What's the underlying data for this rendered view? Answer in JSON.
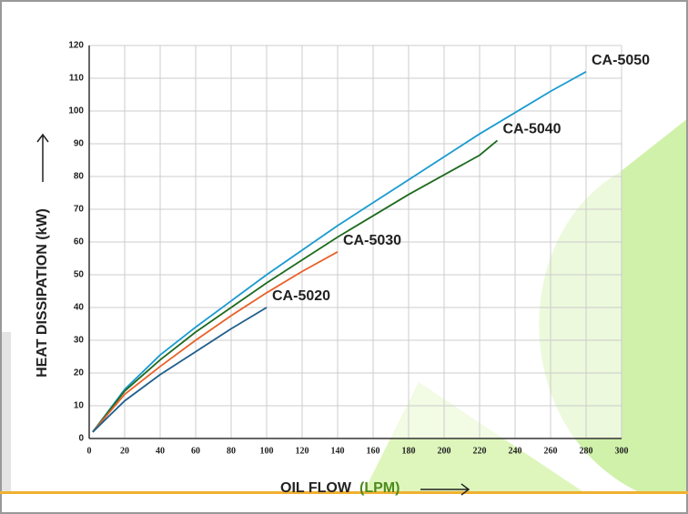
{
  "chart_data": {
    "type": "line",
    "y_label": "HEAT DISSIPATION (kW)",
    "x_label": "OIL FLOW",
    "x_unit": "(LPM)",
    "xlim": [
      0,
      300
    ],
    "xticks": [
      0,
      20,
      40,
      60,
      80,
      100,
      120,
      140,
      160,
      180,
      200,
      220,
      240,
      260,
      280,
      300
    ],
    "ylim": [
      0,
      120
    ],
    "yticks": [
      0,
      10,
      20,
      30,
      40,
      50,
      60,
      70,
      80,
      90,
      100,
      110,
      120
    ],
    "grid": true,
    "series": [
      {
        "name": "CA-5050",
        "color": "#1a9bd0",
        "x": [
          2,
          20,
          40,
          60,
          80,
          100,
          120,
          140,
          160,
          180,
          200,
          220,
          240,
          260,
          280
        ],
        "values": [
          2,
          15,
          25.5,
          34,
          42,
          50,
          57.5,
          65,
          72,
          79,
          86,
          93,
          99.5,
          106,
          112
        ]
      },
      {
        "name": "CA-5040",
        "color": "#1e6b1e",
        "x": [
          2,
          20,
          40,
          60,
          80,
          100,
          120,
          140,
          160,
          180,
          200,
          220,
          230
        ],
        "values": [
          2,
          14.5,
          24,
          32.5,
          40,
          47.5,
          54.5,
          61.5,
          68,
          74.5,
          80.5,
          86.5,
          91
        ]
      },
      {
        "name": "CA-5030",
        "color": "#e8622a",
        "x": [
          2,
          20,
          40,
          60,
          80,
          100,
          120,
          140
        ],
        "values": [
          2,
          13.5,
          22,
          30,
          37.5,
          44.5,
          51,
          57
        ]
      },
      {
        "name": "CA-5020",
        "color": "#1f5f8b",
        "x": [
          2,
          20,
          40,
          60,
          80,
          100
        ],
        "values": [
          2,
          11.5,
          19.5,
          26.5,
          33.5,
          40
        ]
      }
    ]
  }
}
